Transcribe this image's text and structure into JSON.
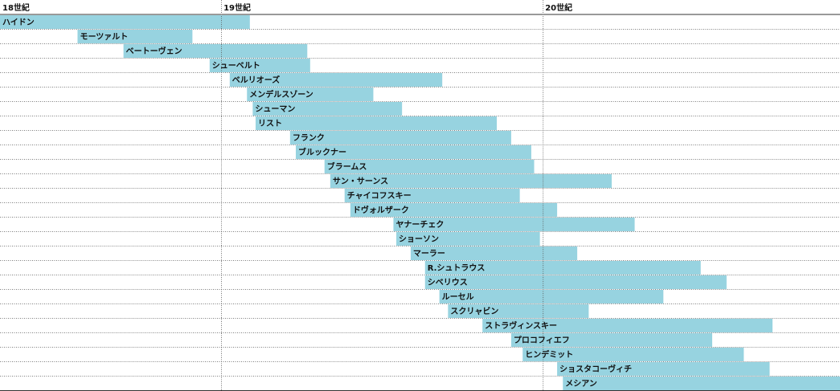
{
  "chart_data": {
    "type": "timeline",
    "xlim": [
      1700,
      1992.5
    ],
    "ticks": [
      {
        "year": 1700,
        "label": "18世紀"
      },
      {
        "year": 1777,
        "label": "19世紀"
      },
      {
        "year": 1889,
        "label": "20世紀"
      }
    ],
    "bar_color": "#97d3e0",
    "rows": [
      {
        "name": "ハイドン",
        "start": 1700,
        "end": 1787
      },
      {
        "name": "モーツァルト",
        "start": 1727,
        "end": 1767
      },
      {
        "name": "ベートーヴェン",
        "start": 1743,
        "end": 1807
      },
      {
        "name": "シューベルト",
        "start": 1773,
        "end": 1808
      },
      {
        "name": "ベルリオーズ",
        "start": 1780,
        "end": 1854
      },
      {
        "name": "メンデルスゾーン",
        "start": 1786,
        "end": 1830
      },
      {
        "name": "シューマン",
        "start": 1788,
        "end": 1840
      },
      {
        "name": "リスト",
        "start": 1789,
        "end": 1873
      },
      {
        "name": "フランク",
        "start": 1801,
        "end": 1878
      },
      {
        "name": "ブルックナー",
        "start": 1803,
        "end": 1885
      },
      {
        "name": "ブラームス",
        "start": 1813,
        "end": 1886
      },
      {
        "name": "サン・サーンス",
        "start": 1815,
        "end": 1913
      },
      {
        "name": "チャイコフスキー",
        "start": 1820,
        "end": 1881
      },
      {
        "name": "ドヴォルザーク",
        "start": 1822,
        "end": 1894
      },
      {
        "name": "ヤナーチェク",
        "start": 1837,
        "end": 1921
      },
      {
        "name": "ショーソン",
        "start": 1838,
        "end": 1888
      },
      {
        "name": "マーラー",
        "start": 1843,
        "end": 1901
      },
      {
        "name": "R.シュトラウス",
        "start": 1848,
        "end": 1944
      },
      {
        "name": "シベリウス",
        "start": 1848,
        "end": 1953
      },
      {
        "name": "ルーセル",
        "start": 1853,
        "end": 1931
      },
      {
        "name": "スクリャビン",
        "start": 1856,
        "end": 1905
      },
      {
        "name": "ストラヴィンスキー",
        "start": 1868,
        "end": 1969
      },
      {
        "name": "プロコフィエフ",
        "start": 1878,
        "end": 1948
      },
      {
        "name": "ヒンデミット",
        "start": 1882,
        "end": 1959
      },
      {
        "name": "ショスタコーヴィチ",
        "start": 1894,
        "end": 1968
      },
      {
        "name": "メシアン",
        "start": 1896,
        "end": 1992.5
      }
    ]
  }
}
